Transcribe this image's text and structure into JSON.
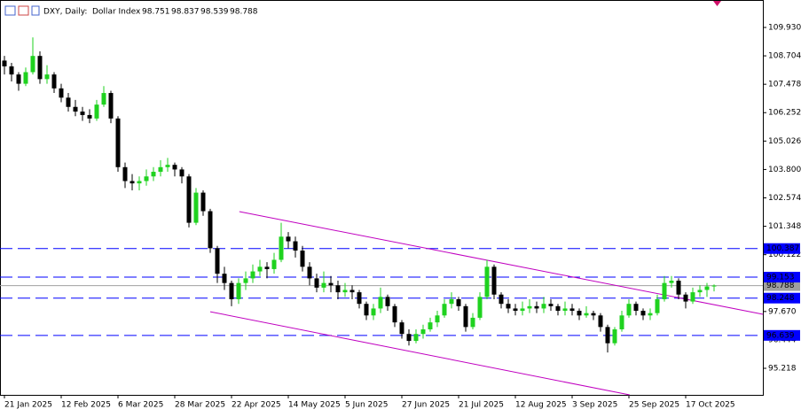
{
  "chart_data": {
    "type": "candlestick",
    "symbol": "DXY, Daily:",
    "description": "Dollar Index",
    "up_color": "#1fd21f",
    "down_color": "#000000",
    "ohlc": [
      [
        108.5,
        108.7,
        107.9,
        108.25
      ],
      [
        108.25,
        108.4,
        107.6,
        107.9
      ],
      [
        107.9,
        108.0,
        107.2,
        107.5
      ],
      [
        107.5,
        108.2,
        107.4,
        108.0
      ],
      [
        108.0,
        109.5,
        107.9,
        108.7
      ],
      [
        108.7,
        108.9,
        107.5,
        107.7
      ],
      [
        107.7,
        108.3,
        107.5,
        107.9
      ],
      [
        107.9,
        108.0,
        107.1,
        107.3
      ],
      [
        107.3,
        107.5,
        106.7,
        106.9
      ],
      [
        106.9,
        107.1,
        106.3,
        106.5
      ],
      [
        106.5,
        106.8,
        106.1,
        106.3
      ],
      [
        106.3,
        106.5,
        105.9,
        106.15
      ],
      [
        106.15,
        106.4,
        105.8,
        106.0
      ],
      [
        106.0,
        106.8,
        105.9,
        106.6
      ],
      [
        106.6,
        107.4,
        106.5,
        107.1
      ],
      [
        107.1,
        107.2,
        105.8,
        106.0
      ],
      [
        106.0,
        106.1,
        103.7,
        103.9
      ],
      [
        103.9,
        104.1,
        103.0,
        103.3
      ],
      [
        103.3,
        103.6,
        102.9,
        103.2
      ],
      [
        103.2,
        103.5,
        102.9,
        103.3
      ],
      [
        103.3,
        103.8,
        103.1,
        103.5
      ],
      [
        103.5,
        103.9,
        103.3,
        103.7
      ],
      [
        103.7,
        104.2,
        103.5,
        103.9
      ],
      [
        103.9,
        104.3,
        103.7,
        104.0
      ],
      [
        104.0,
        104.1,
        103.5,
        103.8
      ],
      [
        103.8,
        103.9,
        103.2,
        103.5
      ],
      [
        103.5,
        103.6,
        101.3,
        101.5
      ],
      [
        101.5,
        103.0,
        101.4,
        102.8
      ],
      [
        102.8,
        102.9,
        101.8,
        102.0
      ],
      [
        102.0,
        102.1,
        100.2,
        100.4
      ],
      [
        100.4,
        100.5,
        98.9,
        99.3
      ],
      [
        99.3,
        99.6,
        98.6,
        98.9
      ],
      [
        98.9,
        99.0,
        97.9,
        98.2
      ],
      [
        98.2,
        99.1,
        98.0,
        98.9
      ],
      [
        98.9,
        99.4,
        98.6,
        99.1
      ],
      [
        99.1,
        99.7,
        98.9,
        99.4
      ],
      [
        99.4,
        99.9,
        99.2,
        99.6
      ],
      [
        99.6,
        99.8,
        99.1,
        99.5
      ],
      [
        99.5,
        100.2,
        99.3,
        99.9
      ],
      [
        99.9,
        101.5,
        99.8,
        100.9
      ],
      [
        100.9,
        101.1,
        100.4,
        100.7
      ],
      [
        100.7,
        100.9,
        100.0,
        100.3
      ],
      [
        100.3,
        100.5,
        99.4,
        99.6
      ],
      [
        99.6,
        99.8,
        98.8,
        99.1
      ],
      [
        99.1,
        99.3,
        98.5,
        98.7
      ],
      [
        98.7,
        99.4,
        98.5,
        98.9
      ],
      [
        98.9,
        99.2,
        98.5,
        98.8
      ],
      [
        98.8,
        99.0,
        98.2,
        98.5
      ],
      [
        98.5,
        98.9,
        98.3,
        98.6
      ],
      [
        98.6,
        98.8,
        98.2,
        98.5
      ],
      [
        98.5,
        98.6,
        97.8,
        98.0
      ],
      [
        98.0,
        98.1,
        97.3,
        97.5
      ],
      [
        97.5,
        98.0,
        97.3,
        97.8
      ],
      [
        97.8,
        98.7,
        97.6,
        98.3
      ],
      [
        98.3,
        98.4,
        97.7,
        97.9
      ],
      [
        97.9,
        98.0,
        97.0,
        97.2
      ],
      [
        97.2,
        97.3,
        96.5,
        96.7
      ],
      [
        96.7,
        96.9,
        96.2,
        96.4
      ],
      [
        96.4,
        96.9,
        96.3,
        96.7
      ],
      [
        96.7,
        97.1,
        96.5,
        96.9
      ],
      [
        96.9,
        97.4,
        96.8,
        97.2
      ],
      [
        97.2,
        97.7,
        97.0,
        97.5
      ],
      [
        97.5,
        98.2,
        97.4,
        98.0
      ],
      [
        98.0,
        98.5,
        97.8,
        98.2
      ],
      [
        98.2,
        98.3,
        97.7,
        97.9
      ],
      [
        97.9,
        98.0,
        96.8,
        97.0
      ],
      [
        97.0,
        97.6,
        96.9,
        97.4
      ],
      [
        97.4,
        98.5,
        97.3,
        98.3
      ],
      [
        98.3,
        99.9,
        98.2,
        99.6
      ],
      [
        99.6,
        99.7,
        98.2,
        98.4
      ],
      [
        98.4,
        98.5,
        97.8,
        98.0
      ],
      [
        98.0,
        98.2,
        97.6,
        97.8
      ],
      [
        97.8,
        98.0,
        97.5,
        97.7
      ],
      [
        97.7,
        98.1,
        97.5,
        97.8
      ],
      [
        97.8,
        98.2,
        97.6,
        97.9
      ],
      [
        97.9,
        98.1,
        97.6,
        97.8
      ],
      [
        97.8,
        98.3,
        97.6,
        98.0
      ],
      [
        98.0,
        98.2,
        97.7,
        97.9
      ],
      [
        97.9,
        98.0,
        97.5,
        97.7
      ],
      [
        97.7,
        98.1,
        97.5,
        97.8
      ],
      [
        97.8,
        98.0,
        97.5,
        97.7
      ],
      [
        97.7,
        97.8,
        97.3,
        97.5
      ],
      [
        97.5,
        97.9,
        97.4,
        97.6
      ],
      [
        97.6,
        97.7,
        97.3,
        97.5
      ],
      [
        97.5,
        97.6,
        96.8,
        97.0
      ],
      [
        97.0,
        97.1,
        95.9,
        96.3
      ],
      [
        96.3,
        97.0,
        96.2,
        96.9
      ],
      [
        96.9,
        97.7,
        96.8,
        97.5
      ],
      [
        97.5,
        98.2,
        97.4,
        98.0
      ],
      [
        98.0,
        98.1,
        97.5,
        97.7
      ],
      [
        97.7,
        97.8,
        97.3,
        97.5
      ],
      [
        97.5,
        97.8,
        97.3,
        97.6
      ],
      [
        97.6,
        98.4,
        97.5,
        98.2
      ],
      [
        98.2,
        99.2,
        98.1,
        98.9
      ],
      [
        98.9,
        99.2,
        98.7,
        99.0
      ],
      [
        99.0,
        99.1,
        98.2,
        98.4
      ],
      [
        98.4,
        98.5,
        97.8,
        98.1
      ],
      [
        98.1,
        98.7,
        98.0,
        98.5
      ],
      [
        98.5,
        98.8,
        98.3,
        98.6
      ],
      [
        98.6,
        98.9,
        98.3,
        98.75
      ],
      [
        98.751,
        98.837,
        98.539,
        98.788
      ]
    ],
    "xlim": [
      -0.625,
      106.875
    ],
    "xticks": [
      {
        "value": 0,
        "label": "21 Jan 2025"
      },
      {
        "value": 8,
        "label": "12 Feb 2025"
      },
      {
        "value": 16,
        "label": "6 Mar 2025"
      },
      {
        "value": 24,
        "label": "28 Mar 2025"
      },
      {
        "value": 32,
        "label": "22 Apr 2025"
      },
      {
        "value": 40,
        "label": "14 May 2025"
      },
      {
        "value": 48,
        "label": "5 Jun 2025"
      },
      {
        "value": 56,
        "label": "27 Jun 2025"
      },
      {
        "value": 64,
        "label": "21 Jul 2025"
      },
      {
        "value": 72,
        "label": "12 Aug 2025"
      },
      {
        "value": 80,
        "label": "3 Sep 2025"
      },
      {
        "value": 88,
        "label": "25 Sep 2025"
      },
      {
        "value": 96,
        "label": "17 Oct 2025"
      }
    ],
    "ylim": [
      94.11,
      111.038
    ],
    "yticks": [
      {
        "value": 109.93,
        "label": "109.930"
      },
      108.704,
      107.478,
      106.252,
      105.026,
      {
        "value": 103.8,
        "label": "103.800"
      },
      102.574,
      101.348,
      100.122,
      98.896,
      {
        "value": 97.67,
        "label": "97.670"
      },
      96.444,
      95.218
    ],
    "levels": [
      100.387,
      99.153,
      98.248,
      96.639
    ],
    "level_color": "#0000ff",
    "last_price_color": "#a0a0a0",
    "channel_color": "#c000c0",
    "channel": [
      {
        "x": [
          33.1,
          106.9
        ],
        "y": [
          101.98,
          97.55
        ]
      },
      {
        "x": [
          29,
          88.1
        ],
        "y": [
          97.66,
          94.07
        ]
      }
    ]
  }
}
